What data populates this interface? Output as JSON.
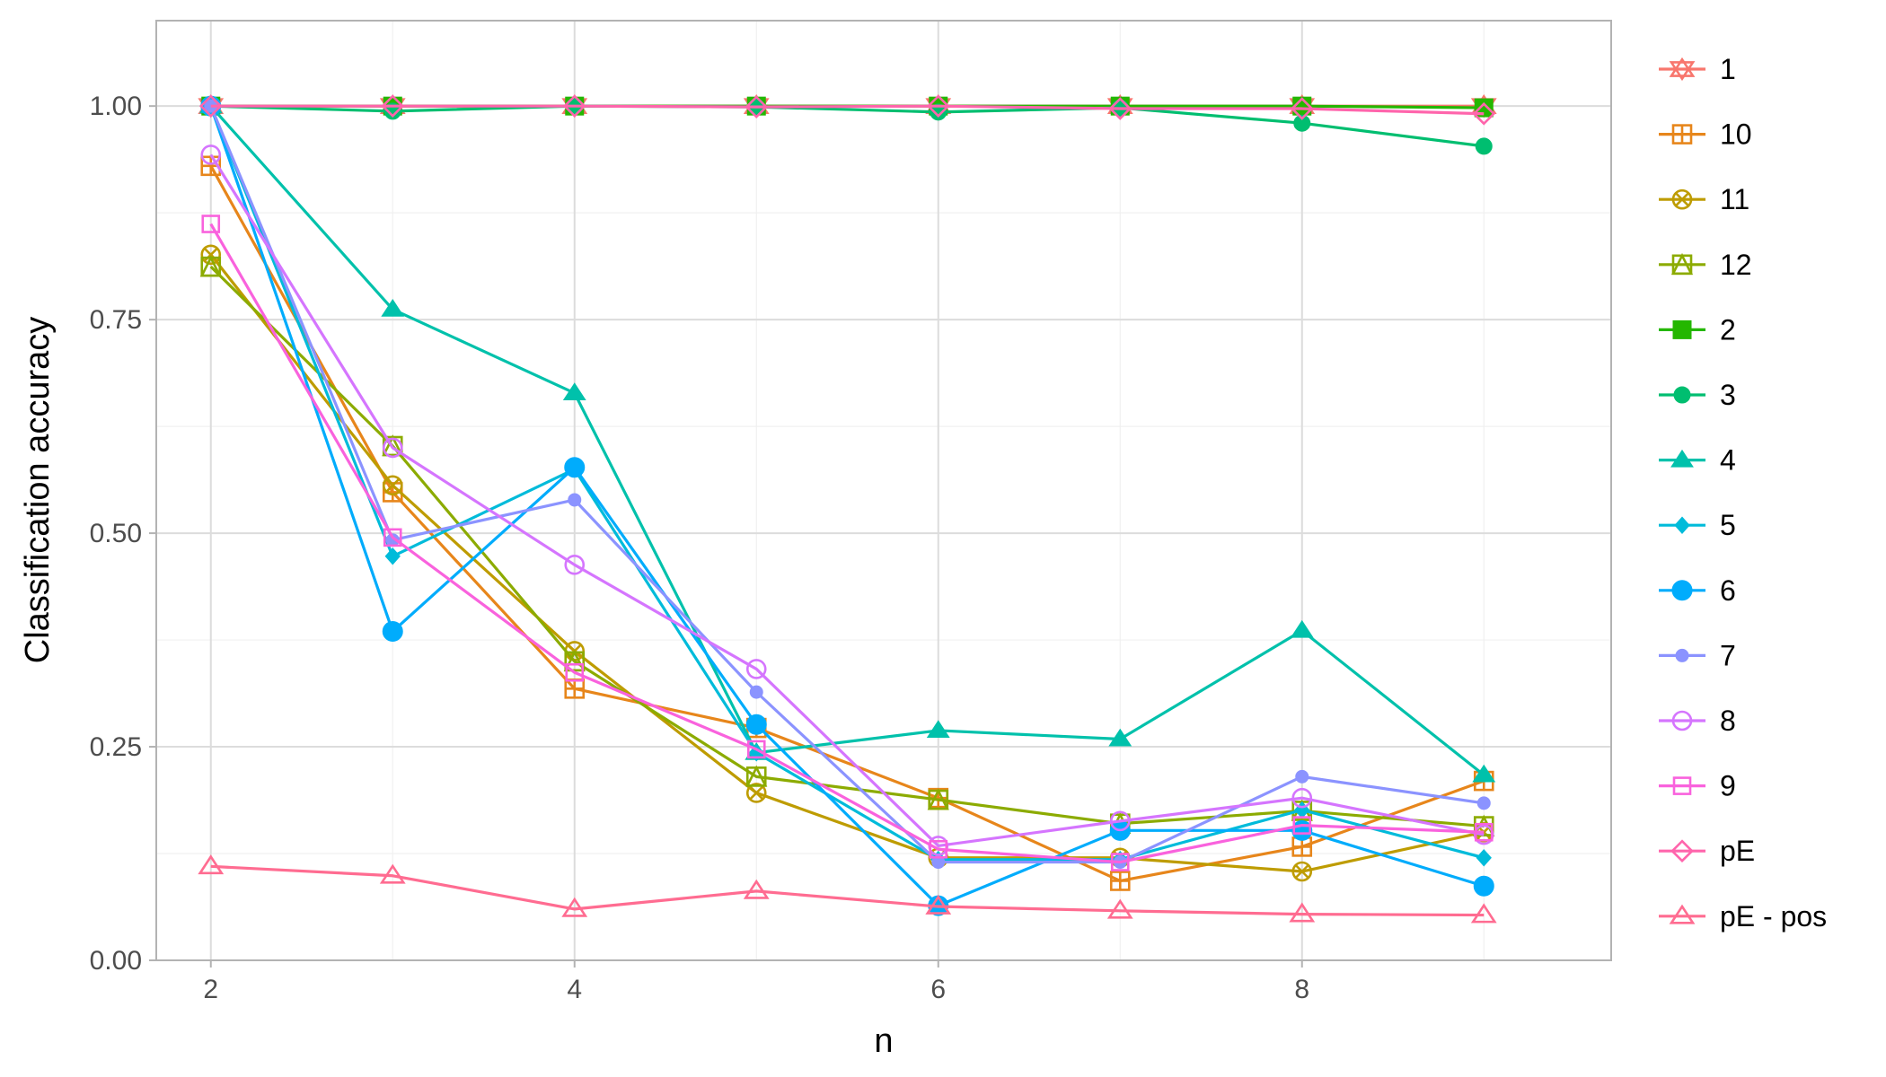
{
  "chart_data": {
    "type": "line",
    "title": "",
    "xlabel": "n",
    "ylabel": "Classification accuracy",
    "xlim": [
      1.7,
      9.7
    ],
    "ylim": [
      0,
      1.1
    ],
    "x_ticks": [
      2,
      4,
      6,
      8
    ],
    "x_tick_labels": [
      "2",
      "4",
      "6",
      "8"
    ],
    "y_ticks": [
      0,
      0.25,
      0.5,
      0.75,
      1.0
    ],
    "y_tick_labels": [
      "0.00",
      "0.25",
      "0.50",
      "0.75",
      "1.00"
    ],
    "grid": true,
    "legend_position": "right",
    "x": [
      2,
      3,
      4,
      5,
      6,
      7,
      8,
      9
    ],
    "series": [
      {
        "name": "1",
        "color": "#F8766D",
        "marker": "star-triangles",
        "values": [
          1.0,
          1.0,
          1.0,
          1.0,
          1.0,
          1.0,
          1.0,
          1.0
        ]
      },
      {
        "name": "10",
        "color": "#E7861B",
        "marker": "square-plus",
        "values": [
          0.93,
          0.548,
          0.318,
          0.272,
          0.19,
          0.093,
          0.133,
          0.21
        ]
      },
      {
        "name": "11",
        "color": "#BE9C00",
        "marker": "circle-x",
        "values": [
          0.826,
          0.556,
          0.362,
          0.196,
          0.12,
          0.12,
          0.104,
          0.15
        ]
      },
      {
        "name": "12",
        "color": "#8CAB00",
        "marker": "square-triangle",
        "values": [
          0.812,
          0.602,
          0.35,
          0.215,
          0.188,
          0.16,
          0.175,
          0.157
        ]
      },
      {
        "name": "2",
        "color": "#24B700",
        "marker": "square-filled",
        "values": [
          1.0,
          1.0,
          1.0,
          1.0,
          1.0,
          1.0,
          1.0,
          0.998
        ]
      },
      {
        "name": "3",
        "color": "#00BE70",
        "marker": "circle-filled",
        "values": [
          1.0,
          0.994,
          1.0,
          0.999,
          0.993,
          0.998,
          0.98,
          0.953
        ]
      },
      {
        "name": "4",
        "color": "#00C1AB",
        "marker": "triangle-filled",
        "values": [
          1.0,
          0.762,
          0.664,
          0.243,
          0.269,
          0.259,
          0.386,
          0.217
        ]
      },
      {
        "name": "5",
        "color": "#00BBDA",
        "marker": "diamond-filled",
        "values": [
          1.0,
          0.473,
          0.575,
          0.243,
          0.118,
          0.118,
          0.176,
          0.12
        ]
      },
      {
        "name": "6",
        "color": "#00ACFC",
        "marker": "circle-large",
        "values": [
          1.0,
          0.385,
          0.577,
          0.276,
          0.064,
          0.152,
          0.152,
          0.087
        ]
      },
      {
        "name": "7",
        "color": "#8B93FF",
        "marker": "circle-small",
        "values": [
          1.0,
          0.492,
          0.539,
          0.314,
          0.115,
          0.115,
          0.215,
          0.184
        ]
      },
      {
        "name": "8",
        "color": "#D575FE",
        "marker": "circle-open",
        "values": [
          0.943,
          0.6,
          0.463,
          0.341,
          0.134,
          0.163,
          0.19,
          0.147
        ]
      },
      {
        "name": "9",
        "color": "#F962DD",
        "marker": "square-open",
        "values": [
          0.862,
          0.495,
          0.337,
          0.247,
          0.13,
          0.115,
          0.158,
          0.15
        ]
      },
      {
        "name": "pE",
        "color": "#FF65AC",
        "marker": "diamond-open",
        "values": [
          1.0,
          1.0,
          1.0,
          0.999,
          1.0,
          0.997,
          0.997,
          0.991
        ]
      },
      {
        "name": "pE - pos",
        "color": "#FF6C91",
        "marker": "triangle-open",
        "values": [
          0.11,
          0.099,
          0.06,
          0.081,
          0.063,
          0.058,
          0.054,
          0.053
        ]
      }
    ]
  }
}
